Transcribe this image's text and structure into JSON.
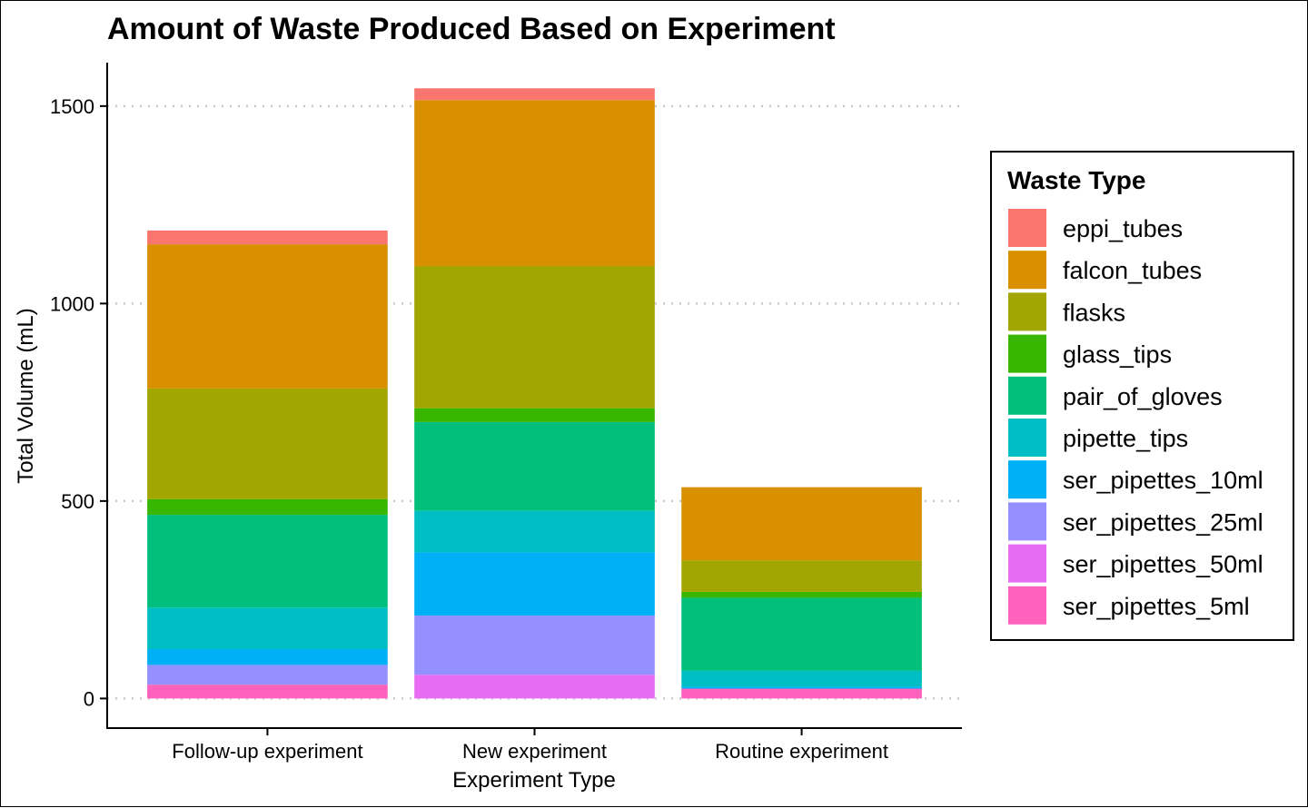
{
  "chart_data": {
    "type": "bar",
    "stacked": true,
    "title": "Amount of Waste Produced Based on Experiment",
    "xlabel": "Experiment Type",
    "ylabel": "Total Volume (mL)",
    "ylim": [
      -75,
      1610
    ],
    "yticks": [
      0,
      500,
      1000,
      1500
    ],
    "ytick_labels": [
      "0",
      "500",
      "1000",
      "1500"
    ],
    "grid": "horizontal-dotted",
    "legend_position": "right",
    "legend_title": "Waste Type",
    "categories": [
      "Follow-up experiment",
      "New experiment",
      "Routine experiment"
    ],
    "series": [
      {
        "name": "eppi_tubes",
        "color": "#F8766D",
        "values": [
          35,
          30,
          0
        ]
      },
      {
        "name": "falcon_tubes",
        "color": "#D89000",
        "values": [
          365,
          420,
          185
        ]
      },
      {
        "name": "flasks",
        "color": "#A3A500",
        "values": [
          280,
          360,
          80
        ]
      },
      {
        "name": "glass_tips",
        "color": "#39B600",
        "values": [
          40,
          35,
          15
        ]
      },
      {
        "name": "pair_of_gloves",
        "color": "#00BF7D",
        "values": [
          235,
          225,
          185
        ]
      },
      {
        "name": "pipette_tips",
        "color": "#00BFC4",
        "values": [
          105,
          105,
          40
        ]
      },
      {
        "name": "ser_pipettes_10ml",
        "color": "#00B0F6",
        "values": [
          40,
          160,
          5
        ]
      },
      {
        "name": "ser_pipettes_25ml",
        "color": "#9590FF",
        "values": [
          50,
          150,
          0
        ]
      },
      {
        "name": "ser_pipettes_50ml",
        "color": "#E76BF3",
        "values": [
          0,
          60,
          0
        ]
      },
      {
        "name": "ser_pipettes_5ml",
        "color": "#FF62BC",
        "values": [
          35,
          0,
          25
        ]
      }
    ]
  }
}
